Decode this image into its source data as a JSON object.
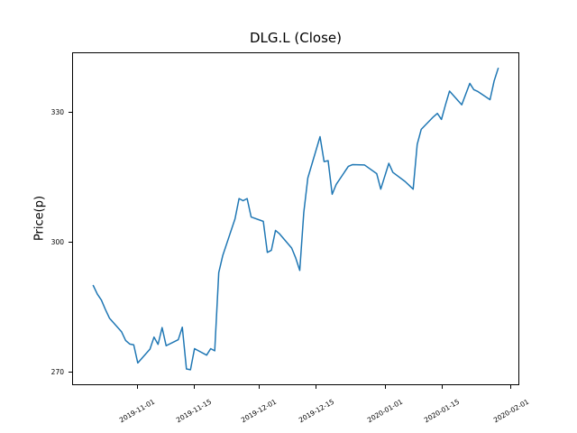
{
  "chart_data": {
    "type": "line",
    "title": "DLG.L (Close)",
    "xlabel": "",
    "ylabel": "Price(p)",
    "grid": false,
    "legend": "none",
    "line_color": "#1f77b4",
    "line_width": 1.5,
    "x_tick_rotation_deg": 30,
    "y_ticks": [
      270,
      300,
      330
    ],
    "x_ticks": [
      "2019-11-01",
      "2019-11-15",
      "2019-12-01",
      "2019-12-15",
      "2020-01-01",
      "2020-01-15",
      "2020-02-01"
    ],
    "xlim": [
      "2019-10-16",
      "2020-02-03"
    ],
    "ylim": [
      266.9,
      344.0
    ],
    "series": [
      {
        "name": "Close",
        "color": "#1f77b4",
        "x": [
          "2019-10-21",
          "2019-10-22",
          "2019-10-23",
          "2019-10-24",
          "2019-10-25",
          "2019-10-28",
          "2019-10-29",
          "2019-10-30",
          "2019-10-31",
          "2019-11-01",
          "2019-11-04",
          "2019-11-05",
          "2019-11-06",
          "2019-11-07",
          "2019-11-08",
          "2019-11-11",
          "2019-11-12",
          "2019-11-13",
          "2019-11-14",
          "2019-11-15",
          "2019-11-18",
          "2019-11-19",
          "2019-11-20",
          "2019-11-21",
          "2019-11-22",
          "2019-11-25",
          "2019-11-26",
          "2019-11-27",
          "2019-11-28",
          "2019-11-29",
          "2019-12-02",
          "2019-12-03",
          "2019-12-04",
          "2019-12-05",
          "2019-12-06",
          "2019-12-09",
          "2019-12-10",
          "2019-12-11",
          "2019-12-12",
          "2019-12-13",
          "2019-12-16",
          "2019-12-17",
          "2019-12-18",
          "2019-12-19",
          "2019-12-20",
          "2019-12-23",
          "2019-12-24",
          "2019-12-27",
          "2019-12-30",
          "2019-12-31",
          "2020-01-02",
          "2020-01-03",
          "2020-01-06",
          "2020-01-07",
          "2020-01-08",
          "2020-01-09",
          "2020-01-10",
          "2020-01-13",
          "2020-01-14",
          "2020-01-15",
          "2020-01-16",
          "2020-01-17",
          "2020-01-20",
          "2020-01-21",
          "2020-01-22",
          "2020-01-23",
          "2020-01-24",
          "2020-01-27",
          "2020-01-28",
          "2020-01-29"
        ],
        "values": [
          290.0,
          288.0,
          286.6,
          284.4,
          282.4,
          279.2,
          277.2,
          276.4,
          276.2,
          272.0,
          275.2,
          278.0,
          276.3,
          280.2,
          276.0,
          277.4,
          280.3,
          270.6,
          270.4,
          275.3,
          273.8,
          275.3,
          274.8,
          293.0,
          297.0,
          305.5,
          310.2,
          309.7,
          310.2,
          305.9,
          304.9,
          297.7,
          298.2,
          302.8,
          302.0,
          298.7,
          296.4,
          293.5,
          307.0,
          315.0,
          324.6,
          318.8,
          319.0,
          311.2,
          313.5,
          317.7,
          318.1,
          318.0,
          316.0,
          312.4,
          318.4,
          316.3,
          314.2,
          313.3,
          312.4,
          322.8,
          326.3,
          329.2,
          330.0,
          328.6,
          332.0,
          335.2,
          332.0,
          334.5,
          337.0,
          335.5,
          335.1,
          333.2,
          337.5,
          340.5
        ]
      }
    ]
  }
}
